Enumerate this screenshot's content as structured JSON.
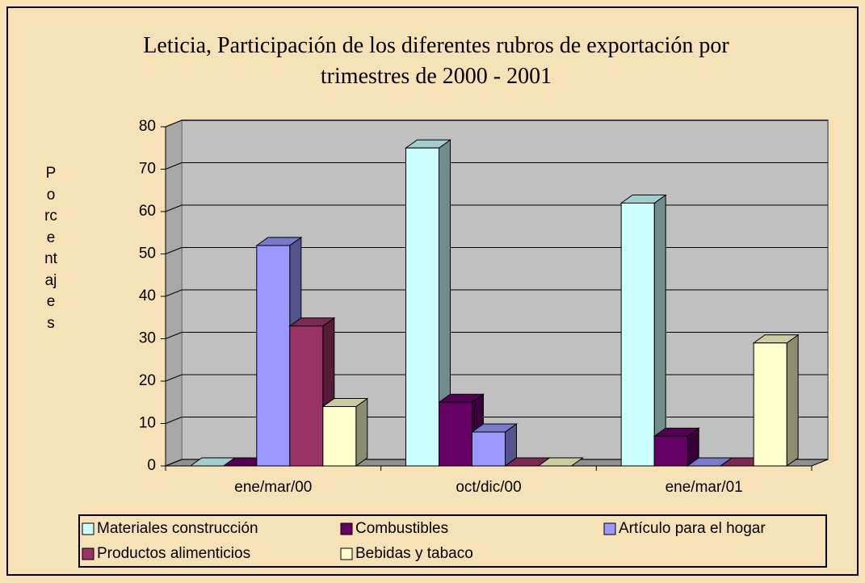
{
  "chart_data": {
    "type": "bar3d",
    "title": "Leticia, Participación de los diferentes rubros de exportación por trimestres de 2000 - 2001",
    "y_label": "Porcentajes",
    "categories": [
      "ene/mar/00",
      "oct/dic/00",
      "ene/mar/01"
    ],
    "series": [
      {
        "name": "Materiales construcción",
        "color": "#ccffff",
        "values": [
          0,
          75,
          62
        ]
      },
      {
        "name": "Combustibles",
        "color": "#660066",
        "values": [
          0,
          15,
          7
        ]
      },
      {
        "name": "Artículo para el hogar",
        "color": "#9999ff",
        "values": [
          52,
          8,
          0
        ]
      },
      {
        "name": "Productos alimenticios",
        "color": "#993366",
        "values": [
          33,
          0,
          0
        ]
      },
      {
        "name": "Bebidas y tabaco",
        "color": "#ffffcc",
        "values": [
          14,
          0,
          29
        ]
      }
    ],
    "ylim": [
      0,
      80
    ],
    "yticks": [
      0,
      10,
      20,
      30,
      40,
      50,
      60,
      70,
      80
    ],
    "grid": true,
    "legend": "bottom"
  }
}
